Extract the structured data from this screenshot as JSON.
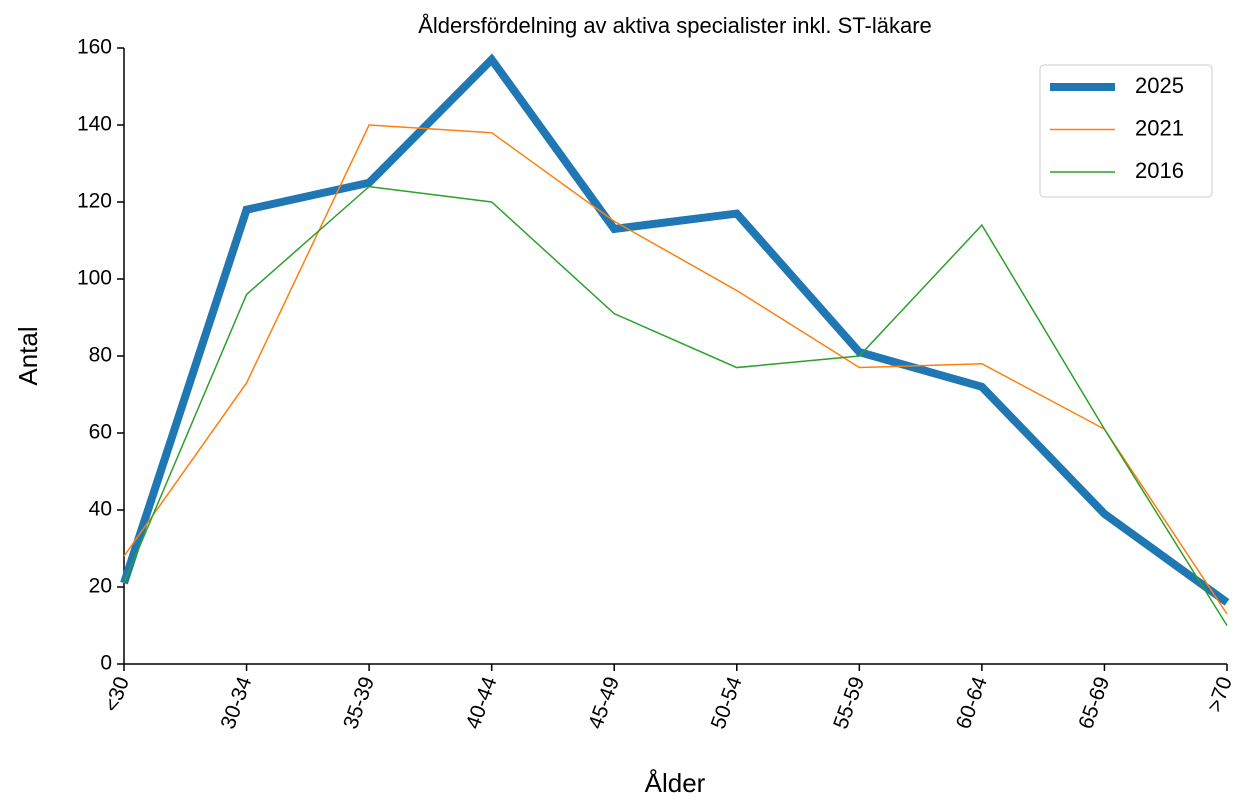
{
  "chart_data": {
    "type": "line",
    "title": "Åldersfördelning av aktiva specialister inkl. ST-läkare",
    "xlabel": "Ålder",
    "ylabel": "Antal",
    "categories": [
      "<30",
      "30-34",
      "35-39",
      "40-44",
      "45-49",
      "50-54",
      "55-59",
      "60-64",
      "65-69",
      ">70"
    ],
    "series": [
      {
        "name": "2025",
        "color": "#1f77b4",
        "linewidth": 8,
        "values": [
          21,
          118,
          125,
          157,
          113,
          117,
          81,
          72,
          39,
          16
        ]
      },
      {
        "name": "2021",
        "color": "#ff7f0e",
        "linewidth": 1.5,
        "values": [
          28,
          73,
          140,
          138,
          115,
          97,
          77,
          78,
          61,
          13
        ]
      },
      {
        "name": "2016",
        "color": "#2ca02c",
        "linewidth": 1.5,
        "values": [
          21,
          96,
          124,
          120,
          91,
          77,
          80,
          114,
          61,
          10
        ]
      }
    ],
    "ylim": [
      0,
      160
    ],
    "yticks": [
      0,
      20,
      40,
      60,
      80,
      100,
      120,
      140,
      160
    ],
    "legend": "upper right",
    "grid": false
  }
}
